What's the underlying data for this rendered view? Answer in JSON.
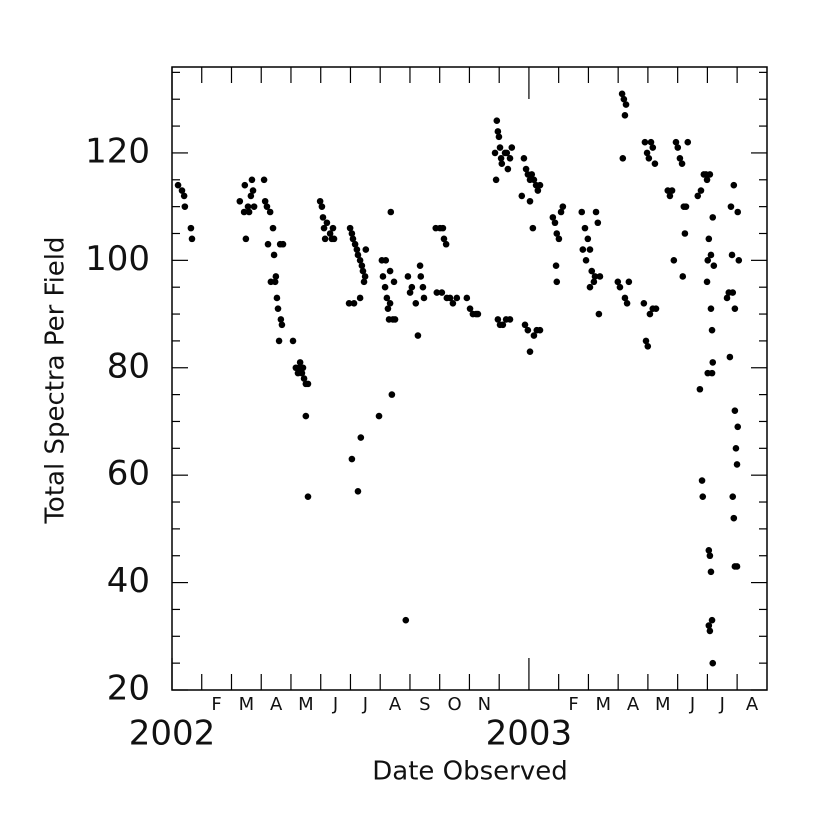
{
  "chart_data": {
    "type": "scatter",
    "xlabel": "Date Observed",
    "ylabel": "Total Spectra Per Field",
    "color": "#000000",
    "xlim": [
      2002,
      2003.667
    ],
    "ylim": [
      20,
      136
    ],
    "yticks": [
      20,
      40,
      60,
      80,
      100,
      120
    ],
    "yminorticks": [
      25,
      30,
      35,
      45,
      50,
      55,
      65,
      70,
      75,
      85,
      90,
      95,
      105,
      110,
      115,
      125,
      130,
      135
    ],
    "xticks": [
      {
        "value": 2002,
        "label": "2002"
      },
      {
        "value": 2003,
        "label": "2003"
      }
    ],
    "xminorticks": [
      2002.0833,
      2002.1667,
      2002.25,
      2002.3333,
      2002.4167,
      2002.5,
      2002.5833,
      2002.6667,
      2002.75,
      2002.8333,
      2002.9167,
      2003.0833,
      2003.1667,
      2003.25,
      2003.3333,
      2003.4167,
      2003.5,
      2003.5833
    ],
    "month_labels": [
      {
        "value": 2002.125,
        "label": "F"
      },
      {
        "value": 2002.2083,
        "label": "M"
      },
      {
        "value": 2002.2917,
        "label": "A"
      },
      {
        "value": 2002.375,
        "label": "M"
      },
      {
        "value": 2002.4583,
        "label": "J"
      },
      {
        "value": 2002.5417,
        "label": "J"
      },
      {
        "value": 2002.625,
        "label": "A"
      },
      {
        "value": 2002.7083,
        "label": "S"
      },
      {
        "value": 2002.7917,
        "label": "O"
      },
      {
        "value": 2002.875,
        "label": "N"
      },
      {
        "value": 2003.125,
        "label": "F"
      },
      {
        "value": 2003.2083,
        "label": "M"
      },
      {
        "value": 2003.2917,
        "label": "A"
      },
      {
        "value": 2003.375,
        "label": "M"
      },
      {
        "value": 2003.4583,
        "label": "J"
      },
      {
        "value": 2003.5417,
        "label": "J"
      },
      {
        "value": 2003.625,
        "label": "A"
      }
    ],
    "x": [
      2002.017,
      2002.028,
      2002.034,
      2002.036,
      2002.053,
      2002.056,
      2002.19,
      2002.202,
      2002.204,
      2002.207,
      2002.213,
      2002.216,
      2002.221,
      2002.224,
      2002.227,
      2002.23,
      2002.258,
      2002.261,
      2002.266,
      2002.269,
      2002.275,
      2002.277,
      2002.283,
      2002.286,
      2002.289,
      2002.291,
      2002.294,
      2002.297,
      2002.3,
      2002.305,
      2002.308,
      2002.311,
      2002.303,
      2002.339,
      2002.347,
      2002.353,
      2002.359,
      2002.364,
      2002.37,
      2002.375,
      2002.381,
      2002.375,
      2002.381,
      2002.356,
      2002.367,
      2002.415,
      2002.42,
      2002.423,
      2002.426,
      2002.429,
      2002.434,
      2002.443,
      2002.448,
      2002.451,
      2002.454,
      2002.499,
      2002.504,
      2002.507,
      2002.513,
      2002.518,
      2002.521,
      2002.527,
      2002.532,
      2002.535,
      2002.541,
      2002.543,
      2002.51,
      2002.527,
      2002.496,
      2002.504,
      2002.521,
      2002.529,
      2002.538,
      2002.58,
      2002.588,
      2002.591,
      2002.597,
      2002.599,
      2002.602,
      2002.605,
      2002.608,
      2002.611,
      2002.613,
      2002.616,
      2002.619,
      2002.625,
      2002.611,
      2002.622,
      2002.655,
      2002.661,
      2002.667,
      2002.672,
      2002.683,
      2002.689,
      2002.695,
      2002.697,
      2002.703,
      2002.706,
      2002.739,
      2002.751,
      2002.759,
      2002.762,
      2002.768,
      2002.742,
      2002.756,
      2002.77,
      2002.779,
      2002.787,
      2002.798,
      2002.826,
      2002.835,
      2002.843,
      2002.852,
      2002.857,
      2002.905,
      2002.91,
      2002.913,
      2002.916,
      2002.919,
      2002.922,
      2002.924,
      2002.933,
      2002.938,
      2002.947,
      2002.908,
      2002.941,
      2002.952,
      2002.913,
      2002.919,
      2002.927,
      2002.936,
      2002.947,
      2002.986,
      2002.992,
      2002.997,
      2003.003,
      2003.008,
      2003.014,
      2003.02,
      2003.025,
      2003.031,
      2002.98,
      2003.003,
      2003.011,
      2002.989,
      2002.997,
      2003.003,
      2003.022,
      2003.031,
      2003.014,
      2003.067,
      2003.073,
      2003.078,
      2003.084,
      2003.09,
      2003.095,
      2003.076,
      2003.078,
      2003.148,
      2003.157,
      2003.165,
      2003.171,
      2003.176,
      2003.182,
      2003.188,
      2003.193,
      2003.151,
      2003.16,
      2003.171,
      2003.185,
      2003.196,
      2003.199,
      2003.249,
      2003.255,
      2003.261,
      2003.266,
      2003.269,
      2003.272,
      2003.263,
      2003.269,
      2003.275,
      2003.28,
      2003.325,
      2003.331,
      2003.336,
      2003.342,
      2003.347,
      2003.353,
      2003.322,
      2003.328,
      2003.333,
      2003.339,
      2003.347,
      2003.356,
      2003.389,
      2003.395,
      2003.401,
      2003.406,
      2003.412,
      2003.417,
      2003.423,
      2003.429,
      2003.434,
      2003.44,
      2003.445,
      2003.437,
      2003.431,
      2003.473,
      2003.479,
      2003.482,
      2003.485,
      2003.487,
      2003.49,
      2003.496,
      2003.499,
      2003.501,
      2003.504,
      2003.507,
      2003.51,
      2003.513,
      2003.501,
      2003.499,
      2003.504,
      2003.507,
      2003.51,
      2003.504,
      2003.507,
      2003.513,
      2003.515,
      2003.515,
      2003.51,
      2003.513,
      2003.515,
      2003.518,
      2003.555,
      2003.56,
      2003.563,
      2003.566,
      2003.569,
      2003.571,
      2003.574,
      2003.577,
      2003.58,
      2003.583,
      2003.585,
      2003.571,
      2003.574,
      2003.577,
      2003.583,
      2003.585,
      2003.588,
      2003.577
    ],
    "values": [
      114,
      113,
      112,
      110,
      106,
      104,
      111,
      109,
      114,
      104,
      110,
      109,
      112,
      115,
      113,
      110,
      115,
      111,
      110,
      103,
      109,
      96,
      106,
      101,
      96,
      97,
      93,
      91,
      85,
      89,
      88,
      103,
      103,
      85,
      80,
      79,
      81,
      79,
      78,
      77,
      77,
      71,
      56,
      80,
      80,
      111,
      110,
      108,
      106,
      104,
      107,
      105,
      104,
      106,
      104,
      106,
      105,
      104,
      103,
      102,
      101,
      100,
      99,
      98,
      97,
      102,
      92,
      93,
      92,
      63,
      57,
      67,
      96,
      71,
      100,
      97,
      95,
      100,
      93,
      91,
      89,
      92,
      109,
      75,
      89,
      89,
      98,
      96,
      33,
      97,
      94,
      95,
      92,
      86,
      99,
      97,
      95,
      93,
      106,
      106,
      106,
      104,
      103,
      94,
      94,
      93,
      93,
      92,
      93,
      93,
      91,
      90,
      90,
      90,
      120,
      126,
      124,
      123,
      121,
      119,
      118,
      120,
      120,
      119,
      115,
      117,
      121,
      89,
      88,
      88,
      89,
      89,
      119,
      117,
      116,
      115,
      116,
      115,
      114,
      113,
      114,
      112,
      111,
      106,
      88,
      87,
      83,
      87,
      87,
      86,
      108,
      107,
      105,
      104,
      109,
      110,
      99,
      96,
      109,
      106,
      104,
      102,
      98,
      96,
      109,
      107,
      102,
      100,
      95,
      97,
      90,
      97,
      96,
      95,
      131,
      130,
      127,
      129,
      119,
      93,
      92,
      96,
      122,
      120,
      119,
      122,
      121,
      118,
      92,
      85,
      84,
      90,
      91,
      91,
      113,
      112,
      113,
      100,
      122,
      121,
      119,
      118,
      110,
      110,
      122,
      105,
      97,
      112,
      76,
      113,
      59,
      56,
      116,
      116,
      115,
      100,
      104,
      116,
      101,
      79,
      79,
      96,
      46,
      45,
      42,
      32,
      31,
      33,
      25,
      108,
      91,
      87,
      81,
      99,
      93,
      94,
      82,
      110,
      101,
      94,
      114,
      72,
      65,
      62,
      69,
      56,
      52,
      43,
      43,
      109,
      100,
      91
    ]
  }
}
